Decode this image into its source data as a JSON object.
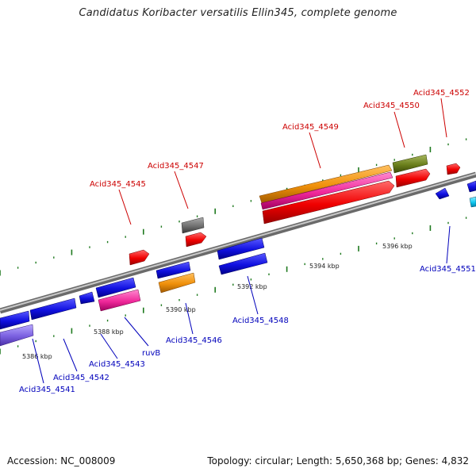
{
  "title": "Candidatus Koribacter versatilis Ellin345, complete genome",
  "footer": {
    "accession": "Accession: NC_008009",
    "stats": "Topology: circular; Length: 5,650,368 bp; Genes: 4,832"
  },
  "colors": {
    "forward_label": "#cc0000",
    "reverse_label": "#0000bb",
    "backbone": "#888888",
    "tick": "#1f7a1f"
  },
  "axis_ticks": [
    "5386 kbp",
    "5388 kbp",
    "5390 kbp",
    "5392 kbp",
    "5394 kbp",
    "5396 kbp"
  ],
  "gene_labels": {
    "forward": [
      "Acid345_4545",
      "Acid345_4547",
      "Acid345_4549",
      "Acid345_4550",
      "Acid345_4552"
    ],
    "reverse": [
      "Acid345_4541",
      "Acid345_4542",
      "Acid345_4543",
      "ruvB",
      "Acid345_4546",
      "Acid345_4548",
      "Acid345_4551"
    ]
  }
}
